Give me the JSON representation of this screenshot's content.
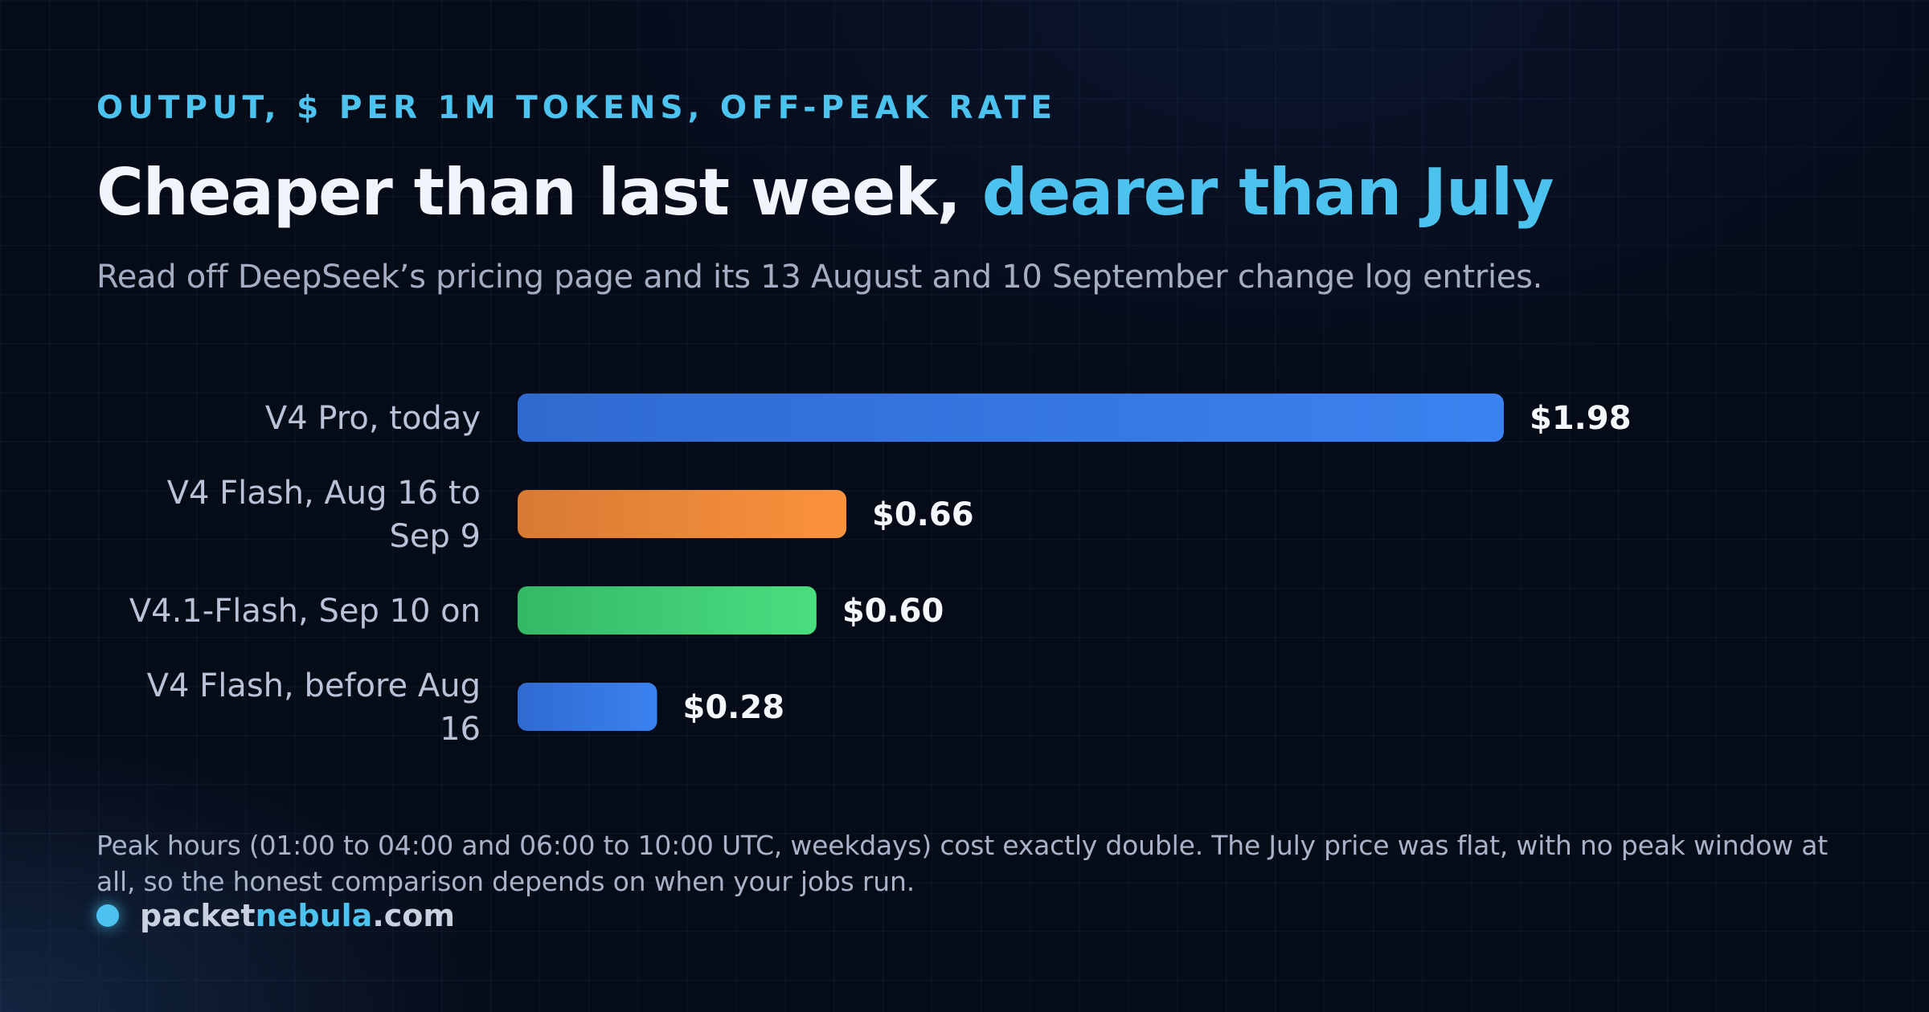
{
  "header": {
    "kicker": "OUTPUT, $ PER 1M TOKENS, OFF-PEAK RATE",
    "title_main": "Cheaper than last week, ",
    "title_accent": "dearer than July",
    "subtitle": "Read off DeepSeek’s pricing page and its 13 August and 10 September change log entries."
  },
  "chart_data": {
    "type": "bar",
    "orientation": "horizontal",
    "categories": [
      [
        "V4 Pro, today"
      ],
      [
        "V4 Flash, Aug 16 to",
        "Sep 9"
      ],
      [
        "V4.1-Flash, Sep 10 on"
      ],
      [
        "V4 Flash, before Aug",
        "16"
      ]
    ],
    "values": [
      1.98,
      0.66,
      0.6,
      0.28
    ],
    "value_labels": [
      "$1.98",
      "$0.66",
      "$0.60",
      "$0.28"
    ],
    "colors": [
      [
        "#2f6ad0",
        "#3b82f0"
      ],
      [
        "#d87a34",
        "#fb923c"
      ],
      [
        "#34b866",
        "#4ade80"
      ],
      [
        "#2f6ad0",
        "#3b82f0"
      ]
    ],
    "xlim": [
      0,
      1.98
    ],
    "grid": false,
    "legend": "none"
  },
  "footer": {
    "note": "Peak hours (01:00 to 04:00 and 06:00 to 10:00 UTC, weekdays) cost exactly double. The July price was flat, with no peak window at all, so the honest comparison depends on when your jobs run.",
    "brand_part1": "packet",
    "brand_part2": "nebula",
    "brand_part3": ".com"
  }
}
